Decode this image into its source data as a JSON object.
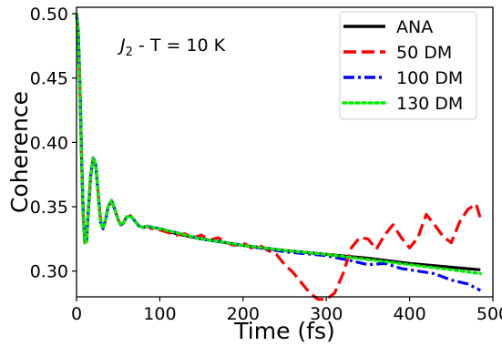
{
  "chart_data": {
    "type": "line",
    "title": "",
    "xlabel": "Time (fs)",
    "ylabel": "Coherence",
    "xlim": [
      0,
      500
    ],
    "ylim": [
      0.28,
      0.505
    ],
    "x_ticks": [
      0,
      100,
      200,
      300,
      400,
      500
    ],
    "y_ticks": [
      0.3,
      0.35,
      0.4,
      0.45,
      0.5
    ],
    "x_tick_labels": [
      "0",
      "100",
      "200",
      "300",
      "400",
      "500"
    ],
    "y_tick_labels": [
      "0.30",
      "0.35",
      "0.40",
      "0.45",
      "0.50"
    ],
    "grid": false,
    "legend_position": "top-right",
    "annotation": {
      "symbol": "J",
      "subscript": "2",
      "text": " - T = 10 K"
    },
    "series": [
      {
        "name": "ANA",
        "color": "#000000",
        "dash": "solid",
        "x": [
          0,
          2,
          4,
          6,
          8,
          10,
          12,
          14,
          17,
          20,
          23,
          26,
          29,
          32,
          35,
          38,
          42,
          46,
          50,
          53,
          56,
          60,
          65,
          70,
          75,
          80,
          85,
          90,
          100,
          120,
          150,
          200,
          250,
          300,
          350,
          400,
          450,
          485
        ],
        "y": [
          0.5,
          0.488,
          0.445,
          0.39,
          0.345,
          0.322,
          0.323,
          0.345,
          0.374,
          0.388,
          0.383,
          0.36,
          0.338,
          0.333,
          0.34,
          0.35,
          0.355,
          0.348,
          0.34,
          0.336,
          0.337,
          0.342,
          0.343,
          0.339,
          0.335,
          0.334,
          0.335,
          0.334,
          0.333,
          0.329,
          0.325,
          0.32,
          0.316,
          0.313,
          0.31,
          0.306,
          0.303,
          0.301
        ]
      },
      {
        "name": "50 DM",
        "color": "#ff0000",
        "dash": "dashed",
        "x": [
          0,
          2,
          4,
          6,
          8,
          10,
          12,
          14,
          17,
          20,
          23,
          26,
          29,
          32,
          35,
          38,
          42,
          46,
          50,
          53,
          56,
          60,
          65,
          70,
          75,
          80,
          85,
          90,
          100,
          110,
          120,
          130,
          140,
          150,
          160,
          170,
          180,
          190,
          200,
          210,
          220,
          230,
          240,
          250,
          260,
          270,
          280,
          290,
          300,
          310,
          320,
          330,
          340,
          350,
          360,
          370,
          380,
          390,
          400,
          410,
          420,
          430,
          440,
          450,
          460,
          470,
          480,
          485
        ],
        "y": [
          0.5,
          0.488,
          0.445,
          0.39,
          0.345,
          0.322,
          0.323,
          0.345,
          0.374,
          0.388,
          0.383,
          0.36,
          0.338,
          0.333,
          0.34,
          0.35,
          0.355,
          0.348,
          0.34,
          0.336,
          0.337,
          0.342,
          0.343,
          0.339,
          0.335,
          0.334,
          0.335,
          0.333,
          0.332,
          0.33,
          0.328,
          0.329,
          0.326,
          0.328,
          0.324,
          0.326,
          0.322,
          0.32,
          0.322,
          0.318,
          0.32,
          0.316,
          0.313,
          0.305,
          0.299,
          0.291,
          0.283,
          0.278,
          0.278,
          0.283,
          0.298,
          0.318,
          0.326,
          0.325,
          0.317,
          0.328,
          0.336,
          0.326,
          0.318,
          0.326,
          0.344,
          0.336,
          0.327,
          0.322,
          0.338,
          0.348,
          0.352,
          0.341
        ]
      },
      {
        "name": "100 DM",
        "color": "#0000ff",
        "dash": "dashdot",
        "x": [
          0,
          2,
          4,
          6,
          8,
          10,
          12,
          14,
          17,
          20,
          23,
          26,
          29,
          32,
          35,
          38,
          42,
          46,
          50,
          53,
          56,
          60,
          65,
          70,
          75,
          80,
          85,
          90,
          100,
          150,
          200,
          250,
          300,
          330,
          350,
          370,
          390,
          410,
          430,
          450,
          470,
          485
        ],
        "y": [
          0.5,
          0.488,
          0.445,
          0.39,
          0.345,
          0.322,
          0.323,
          0.345,
          0.374,
          0.388,
          0.383,
          0.36,
          0.338,
          0.333,
          0.34,
          0.35,
          0.355,
          0.348,
          0.34,
          0.336,
          0.337,
          0.342,
          0.343,
          0.339,
          0.335,
          0.334,
          0.335,
          0.334,
          0.333,
          0.325,
          0.32,
          0.315,
          0.312,
          0.308,
          0.305,
          0.306,
          0.302,
          0.3,
          0.298,
          0.293,
          0.29,
          0.285
        ]
      },
      {
        "name": "130 DM",
        "color": "#00ee00",
        "dash": "dotted",
        "x": [
          0,
          2,
          4,
          6,
          8,
          10,
          12,
          14,
          17,
          20,
          23,
          26,
          29,
          32,
          35,
          38,
          42,
          46,
          50,
          53,
          56,
          60,
          65,
          70,
          75,
          80,
          85,
          90,
          100,
          150,
          200,
          250,
          300,
          350,
          400,
          450,
          485
        ],
        "y": [
          0.5,
          0.488,
          0.445,
          0.39,
          0.345,
          0.322,
          0.323,
          0.345,
          0.374,
          0.388,
          0.383,
          0.36,
          0.338,
          0.333,
          0.34,
          0.35,
          0.355,
          0.348,
          0.34,
          0.336,
          0.337,
          0.342,
          0.343,
          0.339,
          0.335,
          0.334,
          0.335,
          0.334,
          0.333,
          0.325,
          0.32,
          0.316,
          0.313,
          0.309,
          0.305,
          0.301,
          0.298
        ]
      }
    ]
  }
}
